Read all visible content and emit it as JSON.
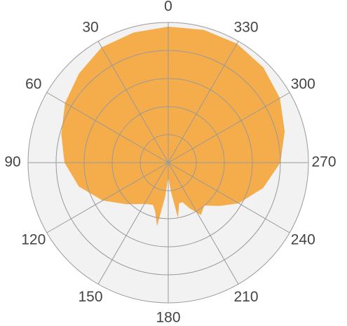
{
  "chart_data": {
    "type": "polar",
    "theta": [
      0,
      15,
      30,
      45,
      60,
      75,
      90,
      105,
      120,
      135,
      150,
      160,
      165,
      170,
      175,
      180,
      185,
      190,
      195,
      200,
      205,
      212,
      220,
      230,
      240,
      255,
      270,
      285,
      300,
      315,
      330,
      345
    ],
    "r": [
      4.85,
      4.8,
      4.75,
      4.5,
      4.25,
      3.95,
      3.7,
      3.3,
      2.7,
      2.1,
      1.7,
      1.6,
      1.8,
      2.3,
      1.2,
      0.5,
      1.0,
      2.0,
      1.5,
      1.5,
      1.8,
      2.2,
      2.0,
      2.4,
      2.9,
      3.5,
      4.0,
      4.3,
      4.6,
      4.8,
      4.9,
      4.9
    ],
    "color": "#f5ad4b",
    "rlim": [
      0,
      5
    ],
    "rticks": [
      1,
      2,
      3,
      4,
      5
    ],
    "thetaticks": [
      0,
      30,
      60,
      90,
      120,
      150,
      180,
      210,
      240,
      270,
      300,
      330
    ],
    "direction": "counterclockwise",
    "zero": "top",
    "grid": true
  }
}
